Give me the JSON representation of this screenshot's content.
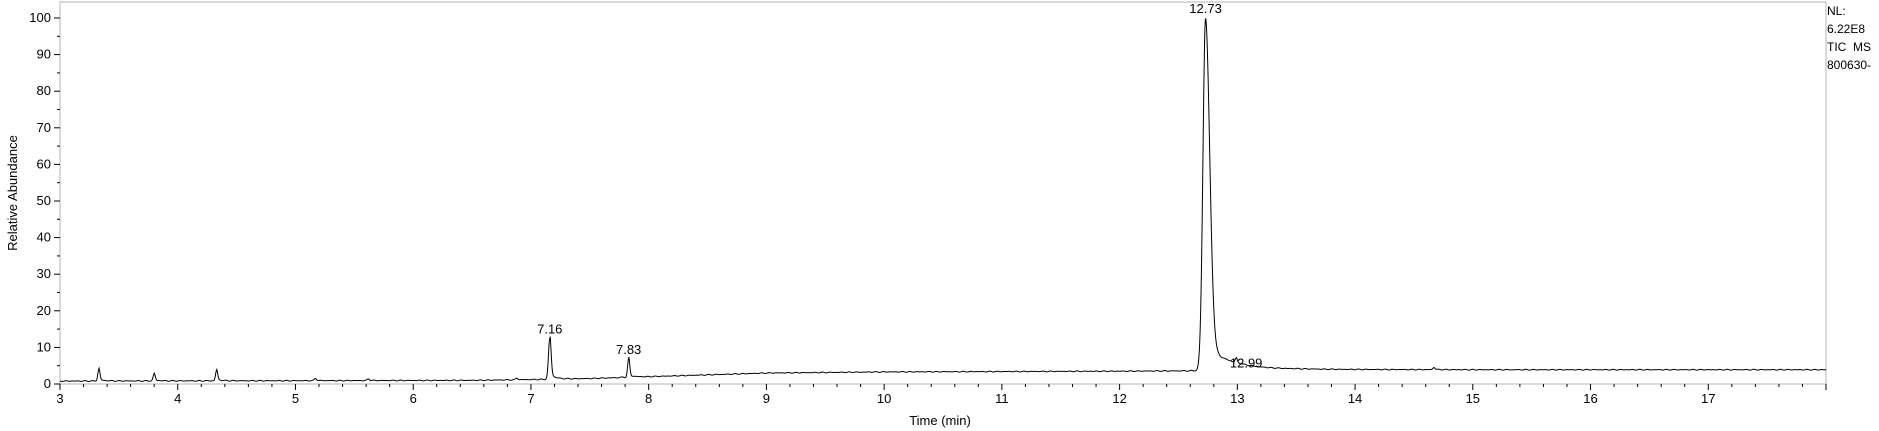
{
  "chart_data": {
    "type": "line",
    "xlabel": "Time (min)",
    "ylabel": "Relative Abundance",
    "xlim": [
      3.0,
      18.0
    ],
    "ylim": [
      0,
      100
    ],
    "x_ticks": [
      3,
      4,
      5,
      6,
      7,
      8,
      9,
      10,
      11,
      12,
      13,
      14,
      15,
      16,
      17
    ],
    "x_tick_labels": [
      "3",
      "4",
      "5",
      "6",
      "7",
      "8",
      "9",
      "10",
      "11",
      "12",
      "13",
      "14",
      "15",
      "16",
      "17"
    ],
    "y_ticks": [
      0,
      10,
      20,
      30,
      40,
      50,
      60,
      70,
      80,
      90,
      100
    ],
    "y_tick_labels": [
      "0",
      "10",
      "20",
      "30",
      "40",
      "50",
      "60",
      "70",
      "80",
      "90",
      "100"
    ],
    "grid": false,
    "baseline": [
      {
        "x": 3.0,
        "y": 0.8
      },
      {
        "x": 5.0,
        "y": 0.9
      },
      {
        "x": 6.5,
        "y": 1.0
      },
      {
        "x": 7.0,
        "y": 1.2
      },
      {
        "x": 7.5,
        "y": 1.5
      },
      {
        "x": 8.0,
        "y": 2.0
      },
      {
        "x": 8.5,
        "y": 2.5
      },
      {
        "x": 9.0,
        "y": 3.0
      },
      {
        "x": 10.0,
        "y": 3.3
      },
      {
        "x": 11.0,
        "y": 3.4
      },
      {
        "x": 12.0,
        "y": 3.5
      },
      {
        "x": 12.6,
        "y": 3.6
      },
      {
        "x": 13.5,
        "y": 4.0
      },
      {
        "x": 15.0,
        "y": 3.9
      },
      {
        "x": 18.0,
        "y": 3.9
      }
    ],
    "peaks": [
      {
        "rt": 3.33,
        "height": 4.0,
        "label": ""
      },
      {
        "rt": 3.8,
        "height": 2.7,
        "label": ""
      },
      {
        "rt": 4.33,
        "height": 3.7,
        "label": ""
      },
      {
        "rt": 5.17,
        "height": 1.5,
        "label": ""
      },
      {
        "rt": 5.62,
        "height": 1.4,
        "label": ""
      },
      {
        "rt": 6.88,
        "height": 1.6,
        "label": ""
      },
      {
        "rt": 7.16,
        "height": 12.4,
        "label": "7.16"
      },
      {
        "rt": 7.78,
        "height": 1.9,
        "label": ""
      },
      {
        "rt": 7.83,
        "height": 6.8,
        "label": "7.83"
      },
      {
        "rt": 12.73,
        "height": 100,
        "label": "12.73"
      },
      {
        "rt": 12.99,
        "height": 5.0,
        "label": "12.99"
      },
      {
        "rt": 14.67,
        "height": 4.5,
        "label": ""
      }
    ],
    "series_color": "#000000"
  },
  "info": {
    "nl_label": "NL:",
    "nl_value": "6.22E8",
    "scan_type": "TIC  MS",
    "file_name": "800630-"
  }
}
